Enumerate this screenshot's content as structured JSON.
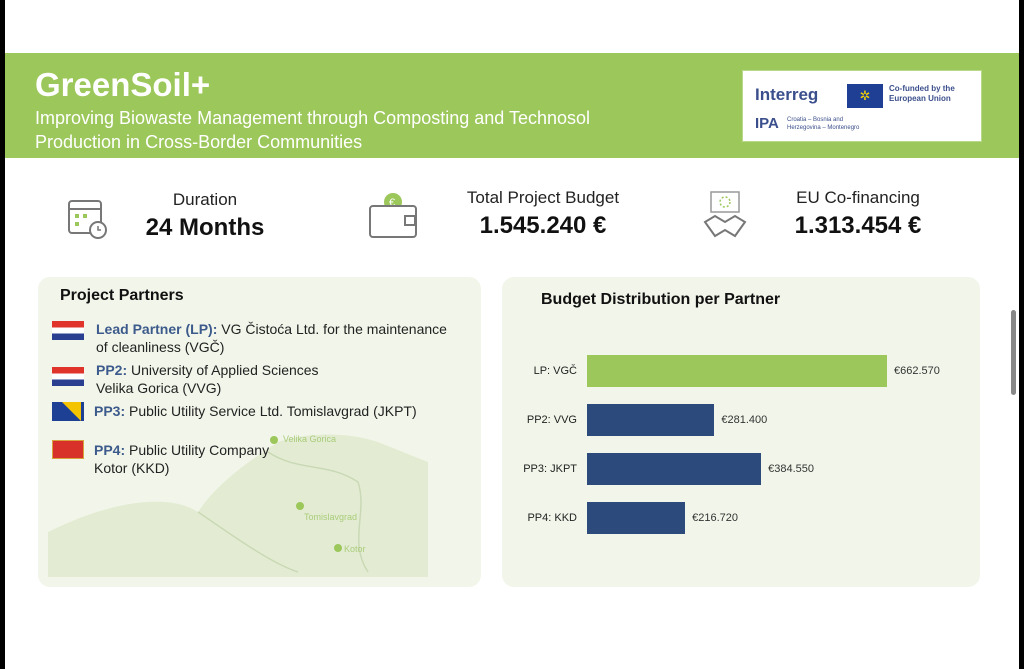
{
  "header": {
    "title": "GreenSoil+",
    "subtitle": "Improving Biowaste Management through Composting and Technosol Production in Cross-Border Communities",
    "logo": {
      "interreg": "Interreg",
      "eu": "Co-funded by the European Union",
      "ipa": "IPA",
      "region": "Croatia – Bosnia and Herzegovina – Montenegro"
    }
  },
  "stats": [
    {
      "label": "Duration",
      "value": "24 Months",
      "icon": "calendar-clock-icon"
    },
    {
      "label": "Total Project Budget",
      "value": "1.545.240 €",
      "icon": "wallet-euro-icon"
    },
    {
      "label": "EU Co-financing",
      "value": "1.313.454 €",
      "icon": "handshake-eu-icon"
    }
  ],
  "partners": {
    "title": "Project Partners",
    "items": [
      {
        "code": "Lead Partner (LP):",
        "name": "VG Čistoća Ltd. for the maintenance of cleanliness (VGČ)",
        "flag": "croatia"
      },
      {
        "code": "PP2:",
        "name": "University of Applied Sciences Velika Gorica (VVG)",
        "flag": "croatia"
      },
      {
        "code": "PP3:",
        "name": "Public Utility Service Ltd. Tomislavgrad (JKPT)",
        "flag": "bosnia"
      },
      {
        "code": "PP4:",
        "name": "Public Utility Company Kotor (KKD)",
        "flag": "montenegro"
      }
    ],
    "map_labels": [
      "Velika Gorica",
      "Tomislavgrad",
      "Kotor"
    ]
  },
  "chart_data": {
    "type": "bar",
    "orientation": "horizontal",
    "title": "Budget Distribution per Partner",
    "categories": [
      "LP: VGČ",
      "PP2: VVG",
      "PP3: JKPT",
      "PP4: KKD"
    ],
    "values": [
      662570,
      281400,
      384550,
      216720
    ],
    "labels": [
      "€662.570",
      "€281.400",
      "€384.550",
      "€216.720"
    ],
    "colors": [
      "#9cc75a",
      "#2c4a7c",
      "#2c4a7c",
      "#2c4a7c"
    ],
    "xlim": [
      0,
      662570
    ]
  }
}
